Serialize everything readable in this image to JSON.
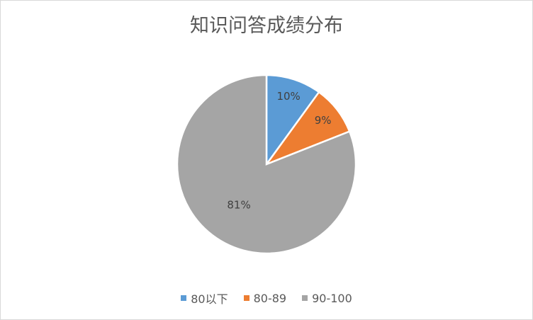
{
  "chart_data": {
    "type": "pie",
    "title": "知识问答成绩分布",
    "categories": [
      "80以下",
      "80-89",
      "90-100"
    ],
    "values": [
      10,
      9,
      81
    ],
    "labels": [
      "10%",
      "9%",
      "81%"
    ],
    "colors": [
      "#5B9BD5",
      "#ED7D31",
      "#A5A5A5"
    ],
    "legend_position": "bottom"
  }
}
